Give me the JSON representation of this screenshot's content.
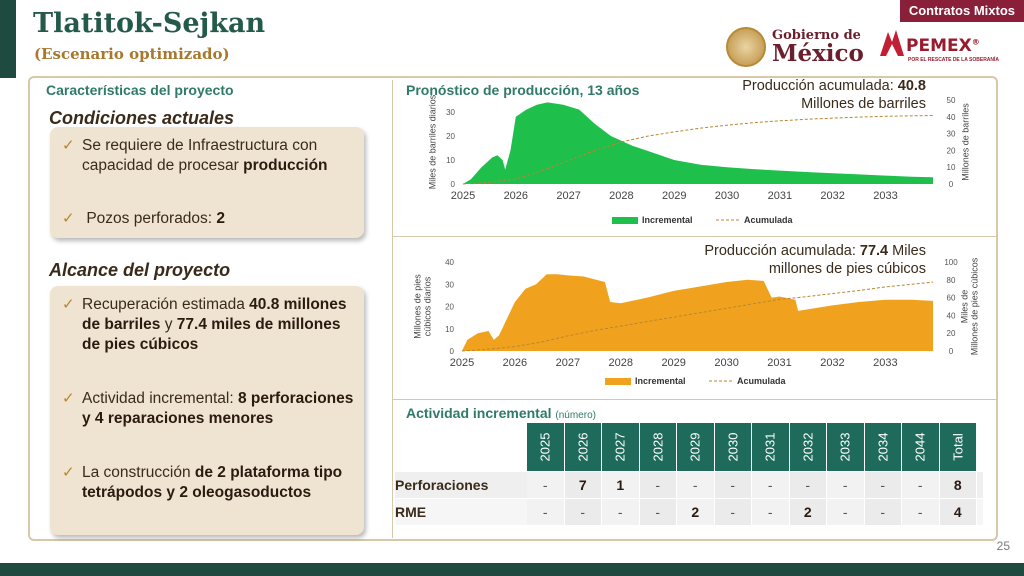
{
  "header": {
    "title": "Tlatitok-Sejkan",
    "subtitle": "(Escenario optimizado)",
    "tag": "Contratos Mixtos",
    "gob_line1": "Gobierno de",
    "gob_line2": "México",
    "pemex_name": "PEMEX",
    "pemex_reg": "®",
    "pemex_tagline": "POR EL RESCATE DE LA SOBERANÍA",
    "page_number": "25"
  },
  "colors": {
    "green_dark": "#1e4a3f",
    "teal": "#2f7a68",
    "gold": "#b8862e",
    "maroon": "#8a1f3a",
    "series_green": "#1fbf4c",
    "series_orange": "#f0a21f"
  },
  "left": {
    "section_title": "Características del proyecto",
    "current_title": "Condiciones actuales",
    "current_items": [
      {
        "text": "Se requiere de Infraestructura con capacidad de procesar ",
        "bold": "producción"
      },
      {
        "text": "Pozos perforados: ",
        "bold": "2"
      }
    ],
    "scope_title": "Alcance del proyecto",
    "scope_items": [
      {
        "t1": "Recuperación estimada ",
        "b1": "40.8 millones de barriles",
        "t2": " y  ",
        "b2": "77.4 miles de millones de pies cúbicos"
      },
      {
        "t1": "Actividad incremental: ",
        "b1": "8 perforaciones y 4 reparaciones menores",
        "t2": "",
        "b2": ""
      },
      {
        "t1": "La construcción ",
        "b1": "de 2 plataforma tipo tetrápodos y 2 oleogasoductos",
        "t2": "",
        "b2": ""
      }
    ]
  },
  "charts_header": {
    "oil_title": "Pronóstico de producción, 13 años",
    "oil_acum_prefix": "Producción acumulada: ",
    "oil_acum_value": "40.8",
    "oil_acum_unit": "Millones de barriles",
    "gas_acum_prefix": "Producción acumulada: ",
    "gas_acum_value": "77.4",
    "gas_acum_unit1": " Miles",
    "gas_acum_unit2": "millones de pies cúbicos"
  },
  "chart_data": [
    {
      "type": "area",
      "title": "Pronóstico de producción, 13 años",
      "ylabel": "Miles de barriles diarios",
      "y2label": "Millones de barriles",
      "ylim": [
        0,
        35
      ],
      "y2lim": [
        0,
        50
      ],
      "yticks": [
        "0",
        "10",
        "20",
        "30"
      ],
      "y2ticks": [
        "0",
        "10",
        "20",
        "30",
        "40",
        "50"
      ],
      "xticks": [
        "2025",
        "2026",
        "2027",
        "2028",
        "2029",
        "2030",
        "2031",
        "2032",
        "2033"
      ],
      "xrange": [
        2025,
        2033.9
      ],
      "color": "#1fbf4c",
      "legend": [
        "Incremental",
        "Acumulada"
      ],
      "series": [
        {
          "name": "Incremental",
          "kind": "area",
          "points": [
            [
              2025,
              0
            ],
            [
              2025.15,
              2
            ],
            [
              2025.35,
              7
            ],
            [
              2025.55,
              11
            ],
            [
              2025.65,
              12
            ],
            [
              2025.75,
              10
            ],
            [
              2025.8,
              6
            ],
            [
              2025.9,
              14
            ],
            [
              2026.0,
              28
            ],
            [
              2026.2,
              31
            ],
            [
              2026.4,
              33
            ],
            [
              2026.6,
              34
            ],
            [
              2026.9,
              33
            ],
            [
              2027.2,
              31
            ],
            [
              2027.5,
              25
            ],
            [
              2027.8,
              20
            ],
            [
              2028.2,
              16
            ],
            [
              2028.6,
              13
            ],
            [
              2029.0,
              10
            ],
            [
              2029.5,
              8
            ],
            [
              2030.0,
              7
            ],
            [
              2030.5,
              6.2
            ],
            [
              2031.0,
              5.6
            ],
            [
              2031.5,
              5
            ],
            [
              2032.0,
              4.5
            ],
            [
              2032.5,
              4
            ],
            [
              2033.0,
              3.5
            ],
            [
              2033.5,
              3
            ],
            [
              2033.9,
              2.8
            ]
          ]
        },
        {
          "name": "Acumulada",
          "kind": "line",
          "points": [
            [
              2025,
              0
            ],
            [
              2025.5,
              1
            ],
            [
              2026,
              3
            ],
            [
              2026.5,
              8
            ],
            [
              2027,
              14
            ],
            [
              2027.5,
              20
            ],
            [
              2028,
              25
            ],
            [
              2028.5,
              28.5
            ],
            [
              2029,
              31
            ],
            [
              2029.5,
              33.3
            ],
            [
              2030,
              35
            ],
            [
              2030.5,
              36.5
            ],
            [
              2031,
              37.6
            ],
            [
              2031.5,
              38.5
            ],
            [
              2032,
              39.2
            ],
            [
              2032.5,
              39.8
            ],
            [
              2033,
              40.3
            ],
            [
              2033.9,
              40.8
            ]
          ]
        }
      ]
    },
    {
      "type": "area",
      "ylabel": "Millones de pies cúbicos diarios",
      "y2label": "Miles de Millones de pies cúbicos",
      "ylim": [
        0,
        40
      ],
      "y2lim": [
        0,
        100
      ],
      "yticks": [
        "0",
        "10",
        "20",
        "30",
        "40"
      ],
      "y2ticks": [
        "0",
        "20",
        "40",
        "60",
        "80",
        "100"
      ],
      "xticks": [
        "2025",
        "2026",
        "2027",
        "2028",
        "2029",
        "2030",
        "2031",
        "2032",
        "2033"
      ],
      "xrange": [
        2025,
        2033.9
      ],
      "color": "#f0a21f",
      "legend": [
        "Incremental",
        "Acumulada"
      ],
      "series": [
        {
          "name": "Incremental",
          "kind": "area",
          "points": [
            [
              2025,
              0
            ],
            [
              2025.1,
              5
            ],
            [
              2025.3,
              8
            ],
            [
              2025.5,
              9
            ],
            [
              2025.6,
              5
            ],
            [
              2025.7,
              7
            ],
            [
              2025.8,
              12
            ],
            [
              2026.0,
              22
            ],
            [
              2026.2,
              28
            ],
            [
              2026.4,
              30
            ],
            [
              2026.6,
              34.5
            ],
            [
              2026.8,
              34.5
            ],
            [
              2027.0,
              34
            ],
            [
              2027.3,
              33.5
            ],
            [
              2027.7,
              31
            ],
            [
              2027.8,
              22
            ],
            [
              2028.0,
              21.5
            ],
            [
              2028.5,
              24
            ],
            [
              2029.0,
              27
            ],
            [
              2029.5,
              29
            ],
            [
              2030.0,
              31
            ],
            [
              2030.4,
              32
            ],
            [
              2030.7,
              31.5
            ],
            [
              2030.85,
              24
            ],
            [
              2031.0,
              24.5
            ],
            [
              2031.3,
              23
            ],
            [
              2031.35,
              18
            ],
            [
              2031.6,
              19
            ],
            [
              2032,
              20.5
            ],
            [
              2032.5,
              22
            ],
            [
              2033,
              23
            ],
            [
              2033.5,
              23
            ],
            [
              2033.9,
              22.5
            ]
          ]
        },
        {
          "name": "Acumulada",
          "kind": "line",
          "points": [
            [
              2025,
              0
            ],
            [
              2025.5,
              2
            ],
            [
              2026,
              5
            ],
            [
              2026.5,
              10
            ],
            [
              2027,
              17
            ],
            [
              2027.5,
              23
            ],
            [
              2028,
              28
            ],
            [
              2028.5,
              33
            ],
            [
              2029,
              38
            ],
            [
              2029.5,
              43
            ],
            [
              2030,
              48
            ],
            [
              2030.5,
              53
            ],
            [
              2031,
              58
            ],
            [
              2031.5,
              61
            ],
            [
              2032,
              64.5
            ],
            [
              2032.5,
              68
            ],
            [
              2033,
              72
            ],
            [
              2033.9,
              77.4
            ]
          ]
        }
      ]
    }
  ],
  "activity": {
    "title": "Actividad incremental",
    "unit": "(número)",
    "years": [
      "2025",
      "2026",
      "2027",
      "2028",
      "2029",
      "2030",
      "2031",
      "2032",
      "2033",
      "2034",
      "2044",
      "Total"
    ],
    "rows": [
      {
        "label": "Perforaciones",
        "values": [
          "-",
          "7",
          "1",
          "-",
          "-",
          "-",
          "-",
          "-",
          "-",
          "-",
          "-",
          "8"
        ]
      },
      {
        "label": "RME",
        "values": [
          "-",
          "-",
          "-",
          "-",
          "2",
          "-",
          "-",
          "2",
          "-",
          "-",
          "-",
          "4"
        ]
      }
    ]
  }
}
